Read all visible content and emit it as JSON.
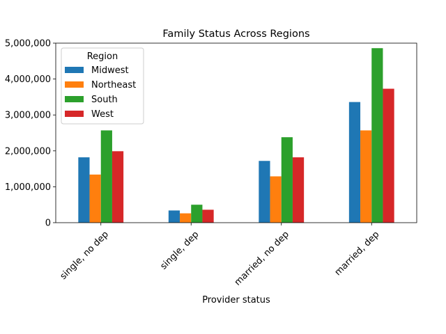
{
  "chart_data": {
    "type": "bar",
    "title": "Family Status Across Regions",
    "xlabel": "Provider status",
    "ylabel": "",
    "ylim": [
      0,
      5000000
    ],
    "yticks": [
      0,
      1000000,
      2000000,
      3000000,
      4000000,
      5000000
    ],
    "ytick_labels": [
      "0",
      "1,000,000",
      "2,000,000",
      "3,000,000",
      "4,000,000",
      "5,000,000"
    ],
    "categories": [
      "single, no dep",
      "single, dep",
      "married, no dep",
      "married, dep"
    ],
    "legend": {
      "title": "Region",
      "placement": "upper-left"
    },
    "series": [
      {
        "name": "Midwest",
        "color": "#1f77b4",
        "values": [
          1820000,
          340000,
          1720000,
          3360000
        ]
      },
      {
        "name": "Northeast",
        "color": "#ff7f0e",
        "values": [
          1340000,
          260000,
          1290000,
          2570000
        ]
      },
      {
        "name": "South",
        "color": "#2ca02c",
        "values": [
          2570000,
          500000,
          2380000,
          4860000
        ]
      },
      {
        "name": "West",
        "color": "#d62728",
        "values": [
          1990000,
          360000,
          1820000,
          3730000
        ]
      }
    ]
  }
}
